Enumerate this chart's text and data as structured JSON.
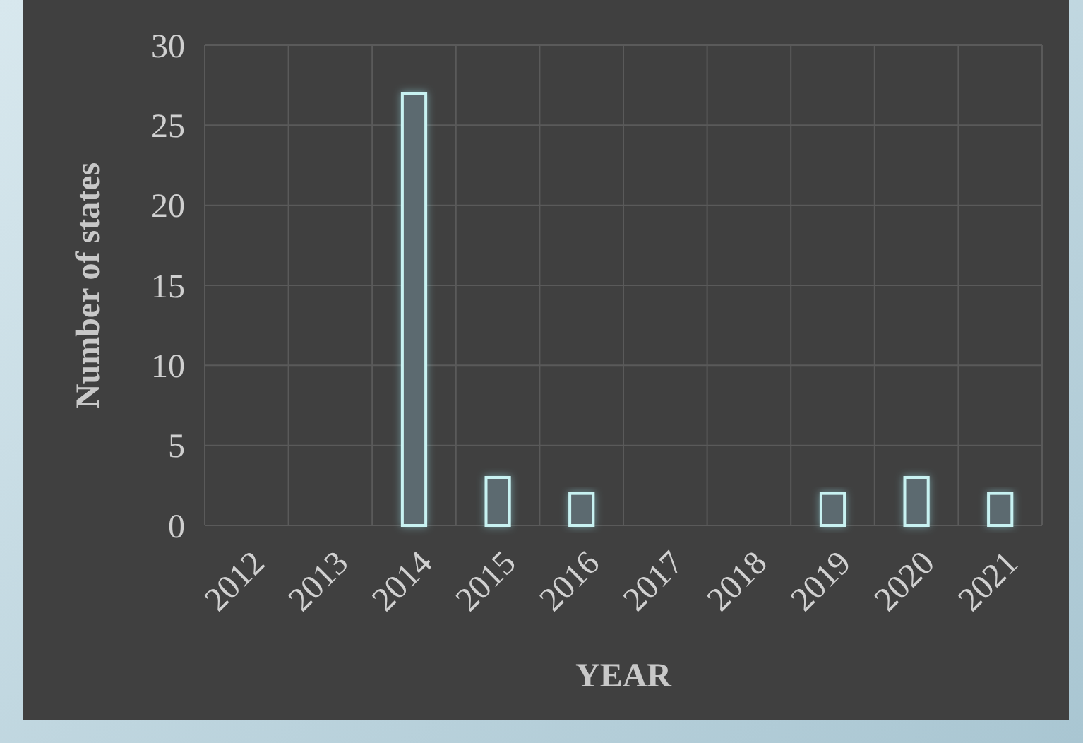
{
  "chart_data": {
    "type": "bar",
    "xlabel": "YEAR",
    "ylabel": "Number of states",
    "categories": [
      "2012",
      "2013",
      "2014",
      "2015",
      "2016",
      "2017",
      "2018",
      "2019",
      "2020",
      "2021"
    ],
    "values": [
      0,
      0,
      27,
      3,
      2,
      0,
      0,
      2,
      3,
      2
    ],
    "color": "#5b6b6f",
    "ylim": [
      0,
      30
    ],
    "yticks": [
      0,
      5,
      10,
      15,
      20,
      25,
      30
    ],
    "grid": true
  }
}
